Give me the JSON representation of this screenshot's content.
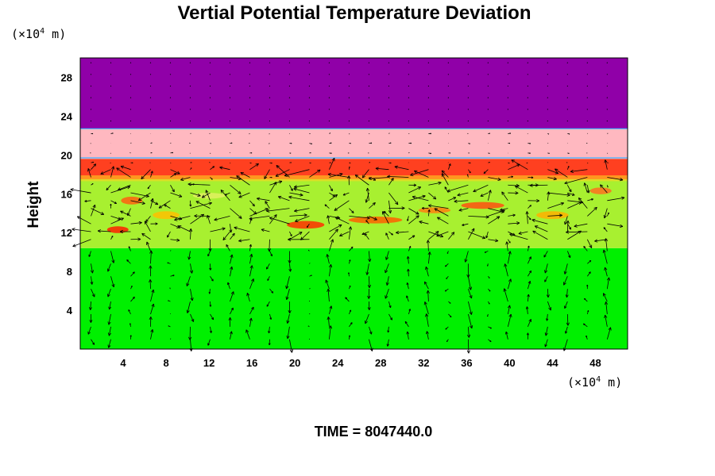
{
  "chart_data": {
    "type": "heatmap",
    "title": "Vertial Potential Temperature Deviation",
    "ylabel": "Height",
    "xlabel": "",
    "x_unit": {
      "prefix": "(×10",
      "exp": "4",
      "suffix": " m)"
    },
    "y_unit": {
      "prefix": "(×10",
      "exp": "4",
      "suffix": " m)"
    },
    "xlim": [
      0,
      51
    ],
    "ylim": [
      0,
      30
    ],
    "x_ticks": [
      4,
      8,
      12,
      16,
      20,
      24,
      28,
      32,
      36,
      40,
      44,
      48
    ],
    "y_ticks": [
      4,
      8,
      12,
      16,
      20,
      24,
      28
    ],
    "x_tick_labels": [
      "4",
      "8",
      "12",
      "16",
      "20",
      "24",
      "28",
      "32",
      "36",
      "40",
      "44",
      "48"
    ],
    "y_tick_labels": [
      "4",
      "8",
      "12",
      "16",
      "20",
      "24",
      "28"
    ],
    "layers": [
      {
        "name": "lower",
        "y0": 0,
        "y1": 10.4,
        "color": "#00f000"
      },
      {
        "name": "turbulent",
        "y0": 10.4,
        "y1": 17.5,
        "color": "#a8f030"
      },
      {
        "name": "warm-band",
        "y0": 17.5,
        "y1": 19.6,
        "color": "#ff4020"
      },
      {
        "name": "stable",
        "y0": 19.6,
        "y1": 22.7,
        "color": "#ffb8c0"
      },
      {
        "name": "top",
        "y0": 22.7,
        "y1": 30,
        "color": "#9000a8"
      }
    ],
    "interface_lines": [
      {
        "y": 19.7,
        "color": "#40b0ff"
      },
      {
        "y": 22.7,
        "color": "#40c0ff"
      }
    ],
    "hot_spots": [
      {
        "x": 3.5,
        "y": 12.3,
        "w": 2.0,
        "h": 0.7,
        "color": "#ff2000"
      },
      {
        "x": 4.8,
        "y": 15.3,
        "w": 2.0,
        "h": 0.8,
        "color": "#ff6010"
      },
      {
        "x": 8.0,
        "y": 13.8,
        "w": 2.5,
        "h": 0.8,
        "color": "#ffc000"
      },
      {
        "x": 21.0,
        "y": 12.8,
        "w": 3.5,
        "h": 0.8,
        "color": "#ff3000"
      },
      {
        "x": 27.5,
        "y": 13.3,
        "w": 5.0,
        "h": 0.7,
        "color": "#ff6000"
      },
      {
        "x": 33.0,
        "y": 14.3,
        "w": 3.0,
        "h": 0.6,
        "color": "#ff8010"
      },
      {
        "x": 37.5,
        "y": 14.8,
        "w": 4.0,
        "h": 0.7,
        "color": "#ff5010"
      },
      {
        "x": 44.0,
        "y": 13.8,
        "w": 3.0,
        "h": 0.8,
        "color": "#ffb000"
      },
      {
        "x": 12.0,
        "y": 15.8,
        "w": 3.0,
        "h": 0.6,
        "color": "#e0f060"
      },
      {
        "x": 48.5,
        "y": 16.3,
        "w": 2.0,
        "h": 0.7,
        "color": "#ff7020"
      }
    ],
    "vector_field": {
      "x_step": 1.85,
      "lower_rows": [
        1.0,
        2.3,
        3.6,
        4.9,
        6.2,
        7.5,
        8.8,
        10.1
      ],
      "upper_rows": [
        11.3,
        12.1,
        12.9,
        13.7,
        14.5,
        15.3,
        16.1,
        16.9,
        17.7,
        18.5
      ],
      "calm_rows": [
        19.2,
        20.2,
        21.2,
        22.2
      ]
    },
    "time_label": "TIME = 8047440.0"
  },
  "colors": {
    "axis": "#000000",
    "arrow": "#000000",
    "background": "#ffffff"
  }
}
